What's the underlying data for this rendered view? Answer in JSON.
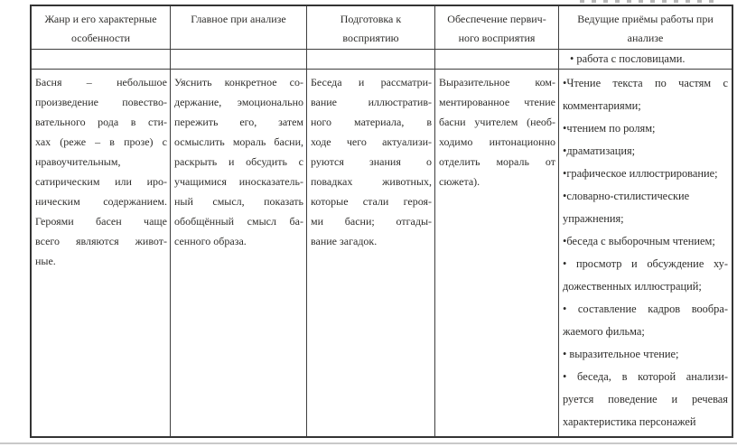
{
  "table": {
    "headers": {
      "genre": "Жанр и его характерные\nособенности",
      "analysis": "Главное при анализе",
      "preparation": "Подготовка к\nвосприятию",
      "perception": "Обеспечение первич-\nного восприятия",
      "methods": "Ведущие приёмы работы при\nанализе"
    },
    "subrow": {
      "methods_note": "• работа с пословицами."
    },
    "body": {
      "genre_lines": [
        "Басня – небольшое",
        "произведение повество-",
        "вательного рода в сти-",
        "хах (реже – в прозе) с",
        "нравоучительным,",
        "сатирическим или иро-",
        "ническим содержанием.",
        "Героями басен чаще",
        "всего являются живот-",
        "ные."
      ],
      "analysis_lines": [
        "Уяснить конкретное со-",
        "держание, эмоционально",
        "пережить его, затем",
        "осмыслить мораль басни,",
        "раскрыть и обсудить с",
        "учащимися иносказатель-",
        "ный смысл, показать",
        "обобщённый смысл ба-",
        "сенного образа."
      ],
      "preparation_lines": [
        "Беседа и рассматри-",
        "вание иллюстратив-",
        "ного материала, в",
        "ходе чего актуализи-",
        "руются знания о",
        "повадках животных,",
        "которые стали героя-",
        "ми басни; отгады-",
        "вание загадок."
      ],
      "perception_lines": [
        "Выразительное ком-",
        "ментированное чтение",
        "басни учителем (необ-",
        "ходимо интонационно",
        "отделить мораль от",
        "сюжета)."
      ],
      "methods_items": [
        [
          "•Чтение текста по частям с",
          "комментариями;"
        ],
        [
          "•чтением по ролям;"
        ],
        [
          "•драматизация;"
        ],
        [
          "•графическое иллюстрирование;"
        ],
        [
          "•словарно-стилистические",
          "упражнения;"
        ],
        [
          "•беседа с выборочным чтением;"
        ],
        [
          "• просмотр и обсуждение ху-",
          "дожественных иллюстраций;"
        ],
        [
          "• составление кадров вообра-",
          "жаемого фильма;"
        ],
        [
          "• выразительное чтение;"
        ],
        [
          "• беседа, в которой анализи-",
          "руется поведение и речевая",
          "характеристика персонажей"
        ]
      ]
    }
  }
}
